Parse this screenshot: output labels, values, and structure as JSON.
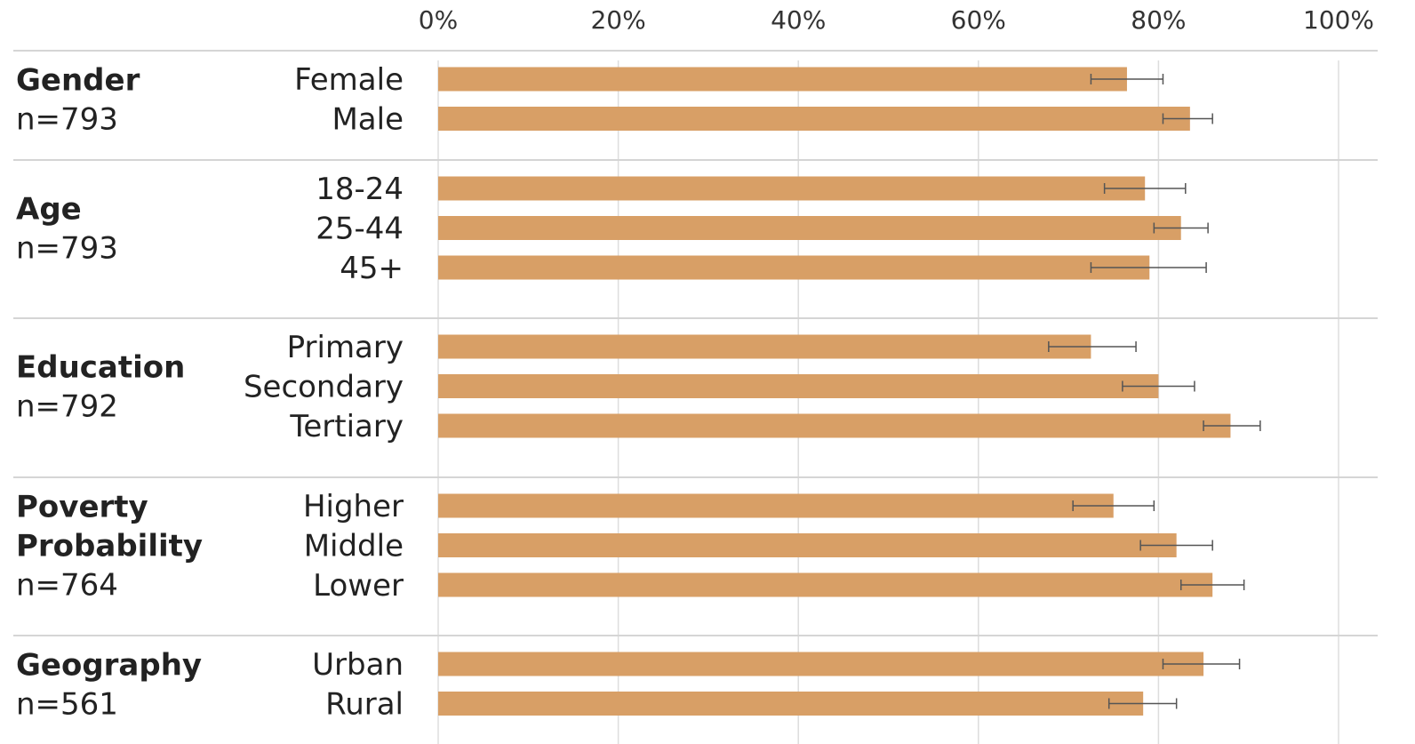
{
  "chart_data": {
    "type": "bar",
    "orientation": "horizontal",
    "xlim": [
      0,
      100
    ],
    "x_ticks": [
      "0%",
      "20%",
      "40%",
      "60%",
      "80%",
      "100%"
    ],
    "grid": true,
    "bar_color": "#d89f66",
    "error_bar_color": "#555555",
    "groups": [
      {
        "title": "Gender",
        "n_label": "n=793",
        "categories": [
          {
            "label": "Female",
            "value": 76.5,
            "err_low": 72.5,
            "err_high": 80.5
          },
          {
            "label": "Male",
            "value": 83.5,
            "err_low": 80.5,
            "err_high": 86.0
          }
        ]
      },
      {
        "title": "Age",
        "n_label": "n=793",
        "categories": [
          {
            "label": "18-24",
            "value": 78.5,
            "err_low": 74.0,
            "err_high": 83.0
          },
          {
            "label": "25-44",
            "value": 82.5,
            "err_low": 79.5,
            "err_high": 85.5
          },
          {
            "label": "45+",
            "value": 79.0,
            "err_low": 72.5,
            "err_high": 85.3
          }
        ]
      },
      {
        "title": "Education",
        "n_label": "n=792",
        "categories": [
          {
            "label": "Primary",
            "value": 72.5,
            "err_low": 67.8,
            "err_high": 77.5
          },
          {
            "label": "Secondary",
            "value": 80.0,
            "err_low": 76.0,
            "err_high": 84.0
          },
          {
            "label": "Tertiary",
            "value": 88.0,
            "err_low": 85.0,
            "err_high": 91.3
          }
        ]
      },
      {
        "title": "Poverty Probability",
        "n_label": "n=764",
        "categories": [
          {
            "label": "Higher",
            "value": 75.0,
            "err_low": 70.5,
            "err_high": 79.5
          },
          {
            "label": "Middle",
            "value": 82.0,
            "err_low": 78.0,
            "err_high": 86.0
          },
          {
            "label": "Lower",
            "value": 86.0,
            "err_low": 82.5,
            "err_high": 89.5
          }
        ]
      },
      {
        "title": "Geography",
        "n_label": "n=561",
        "categories": [
          {
            "label": "Urban",
            "value": 85.0,
            "err_low": 80.5,
            "err_high": 89.0
          },
          {
            "label": "Rural",
            "value": 78.3,
            "err_low": 74.5,
            "err_high": 82.0
          }
        ]
      }
    ]
  }
}
